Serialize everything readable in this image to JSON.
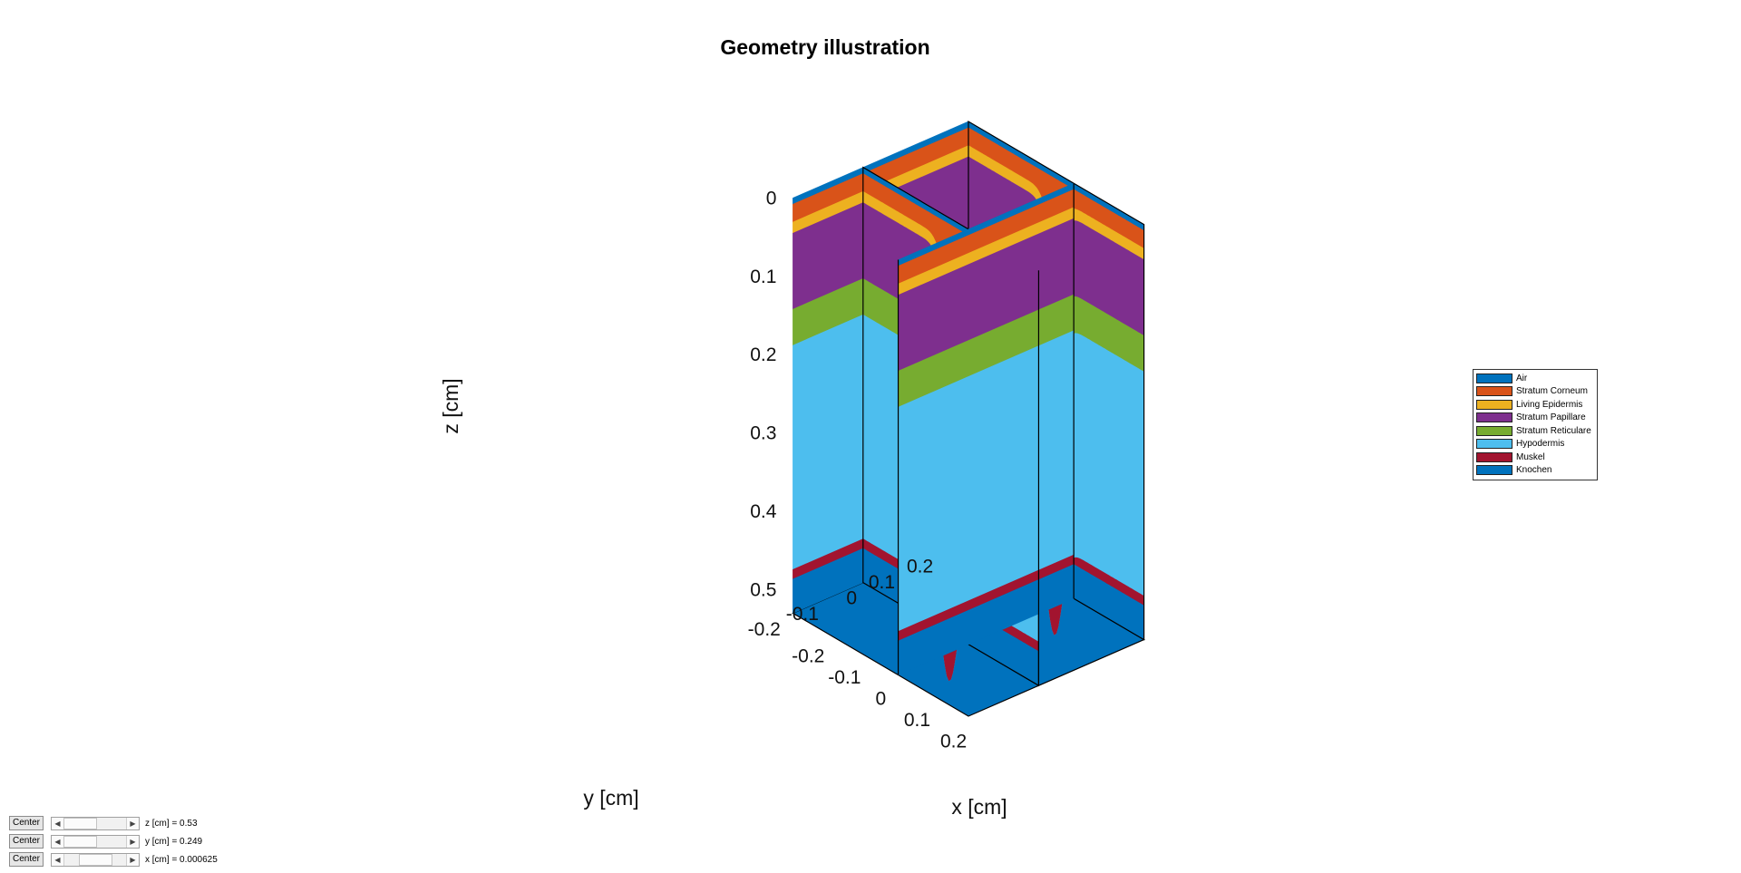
{
  "figure": {
    "title": "Geometry illustration",
    "axes": {
      "z": {
        "label": "z [cm]",
        "ticks": [
          "0",
          "0.1",
          "0.2",
          "0.3",
          "0.4",
          "0.5"
        ]
      },
      "y": {
        "label": "y [cm]",
        "ticks": [
          "0.2",
          "0.1",
          "0",
          "-0.1",
          "-0.2"
        ]
      },
      "x": {
        "label": "x [cm]",
        "ticks": [
          "-0.2",
          "-0.1",
          "0",
          "0.1",
          "0.2"
        ]
      }
    }
  },
  "legend": {
    "items": [
      {
        "label": "Air",
        "color": "#0072BD"
      },
      {
        "label": "Stratum Corneum",
        "color": "#D95319"
      },
      {
        "label": "Living Epidermis",
        "color": "#EDB120"
      },
      {
        "label": "Stratum Papillare",
        "color": "#7E2F8E"
      },
      {
        "label": "Stratum Reticulare",
        "color": "#77AC30"
      },
      {
        "label": "Hypodermis",
        "color": "#4DBEEE"
      },
      {
        "label": "Muskel",
        "color": "#A2142F"
      },
      {
        "label": "Knochen",
        "color": "#0072BD"
      }
    ]
  },
  "controls": [
    {
      "button": "Center",
      "readout": "z [cm] = 0.53",
      "position": 0.0
    },
    {
      "button": "Center",
      "readout": "y [cm] = 0.249",
      "position": 0.0
    },
    {
      "button": "Center",
      "readout": "x [cm] = 0.000625",
      "position": 0.5
    }
  ]
}
